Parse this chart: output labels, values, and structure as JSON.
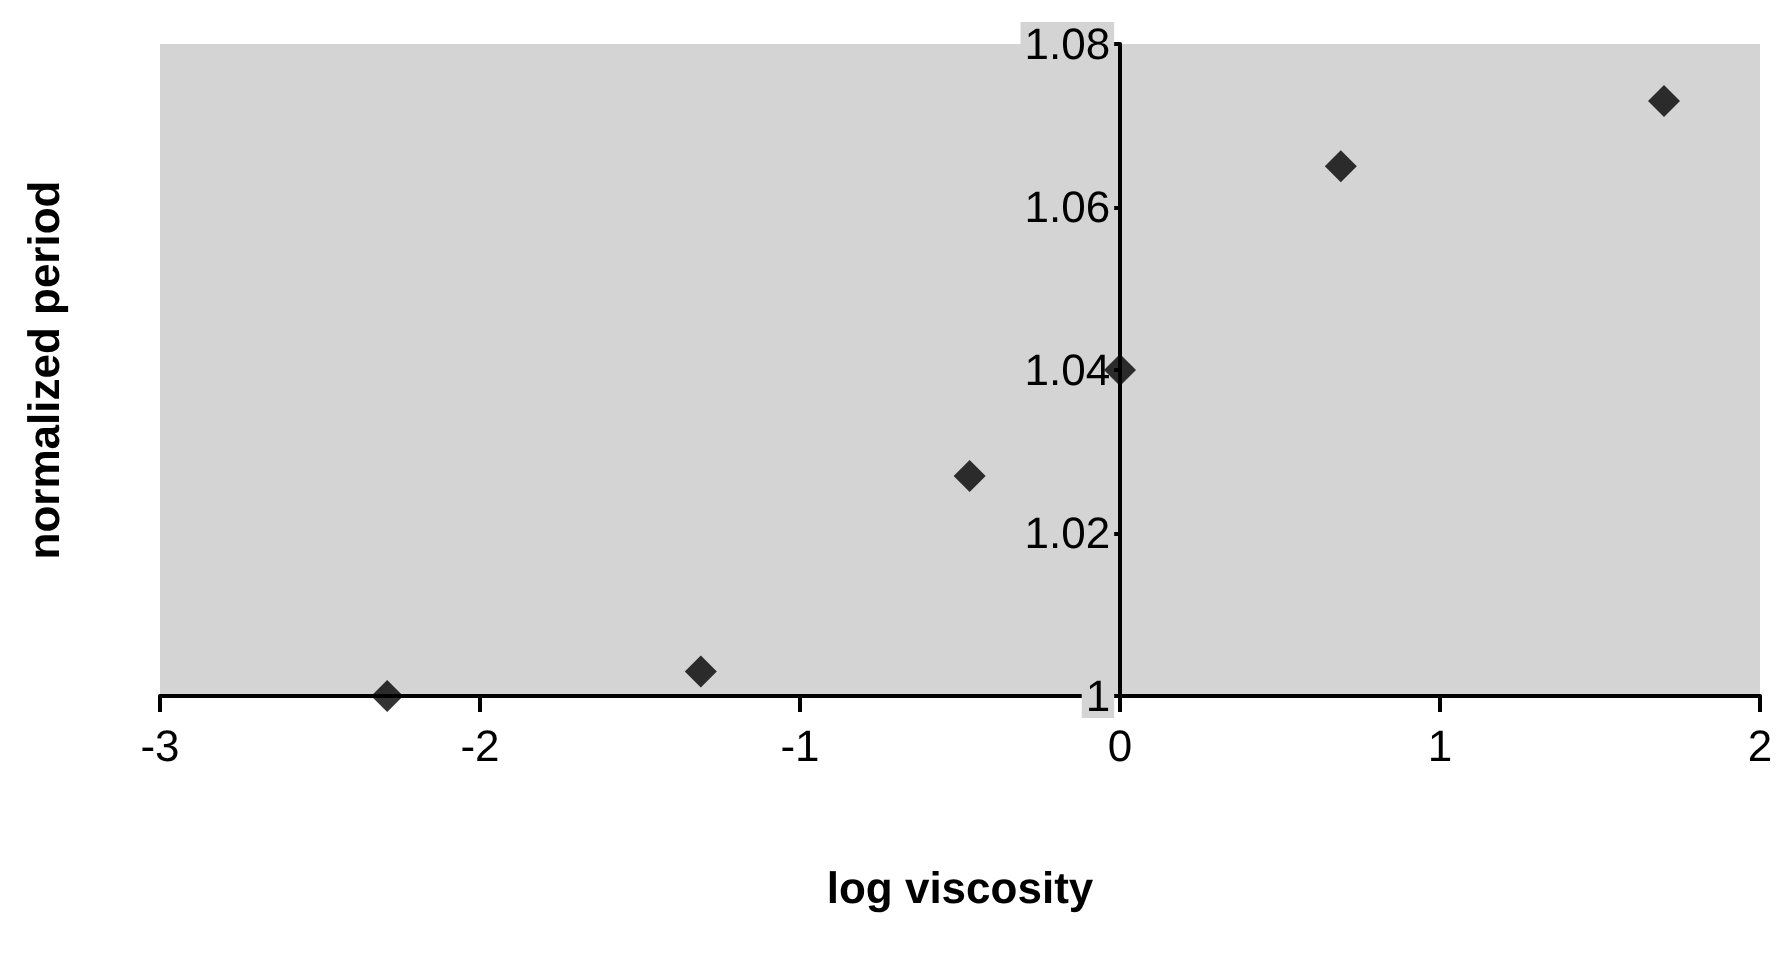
{
  "chart_data": {
    "type": "scatter",
    "xlabel": "log viscosity",
    "ylabel": "normalized period",
    "x": [
      -2.29,
      -1.31,
      -0.47,
      0,
      0.69,
      1.7
    ],
    "series": [
      {
        "color": "#000000",
        "values": [
          1.0,
          1.003,
          1.027,
          1.04,
          1.065,
          1.073
        ]
      }
    ],
    "xlim": [
      -3,
      2
    ],
    "xticks": [
      -3,
      -2,
      -1,
      0,
      1,
      2
    ],
    "ylim": [
      1,
      1.08
    ],
    "yticks": [
      1,
      1.02,
      1.04,
      1.06,
      1.08
    ],
    "grid": false,
    "marker": "diamond"
  }
}
